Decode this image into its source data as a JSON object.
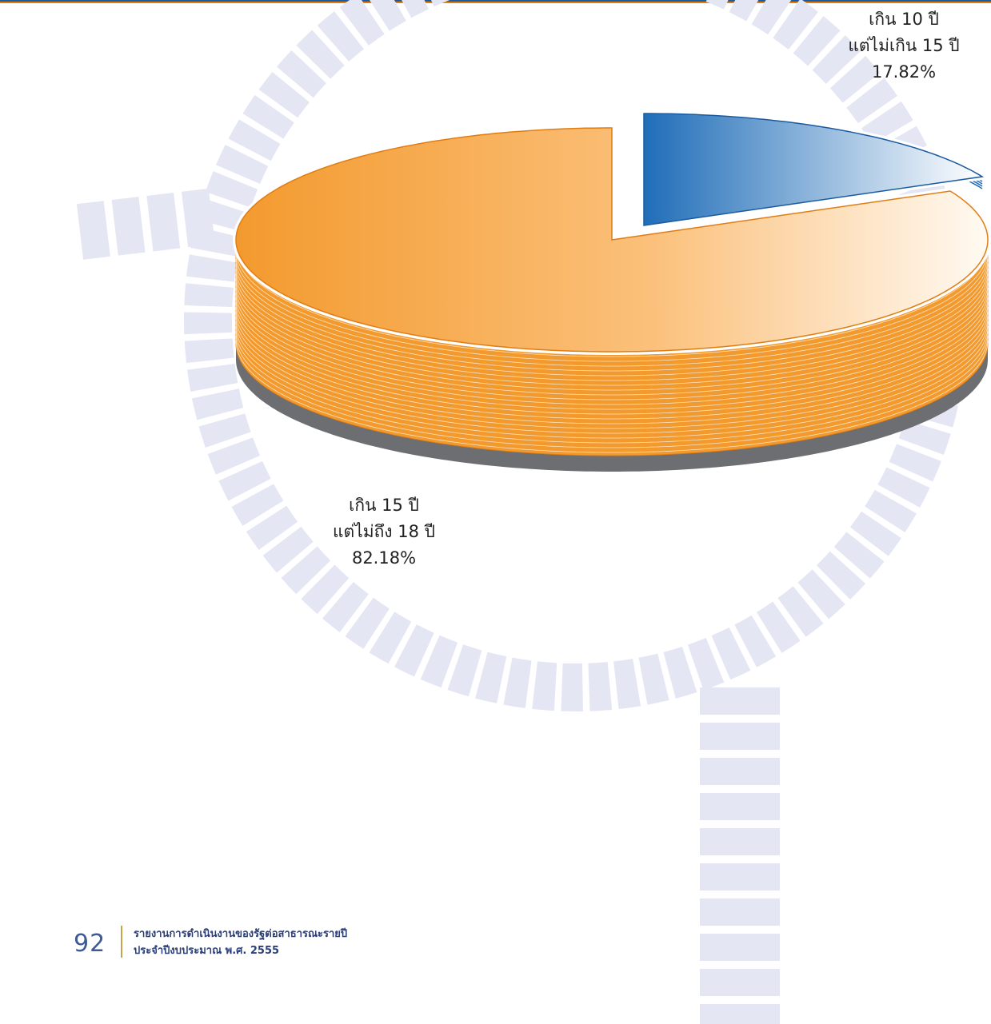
{
  "chart_data": {
    "type": "pie",
    "categories": [
      "เกิน 10 ปี\nแต่ไม่เกิน 15 ปี",
      "เกิน 15 ปี\nแต่ไม่ถึง 18 ปี"
    ],
    "values": [
      17.82,
      82.18
    ],
    "value_labels": [
      "17.82%",
      "82.18%"
    ],
    "colors": [
      "#1f6db8",
      "#f39a2e"
    ]
  },
  "footer": {
    "page_number": "92",
    "lines": [
      "รายงานการดำเนินงานของรัฐต่อสาธารณะรายปี",
      "ประจำปีงบประมาณ พ.ศ. 2555"
    ]
  }
}
